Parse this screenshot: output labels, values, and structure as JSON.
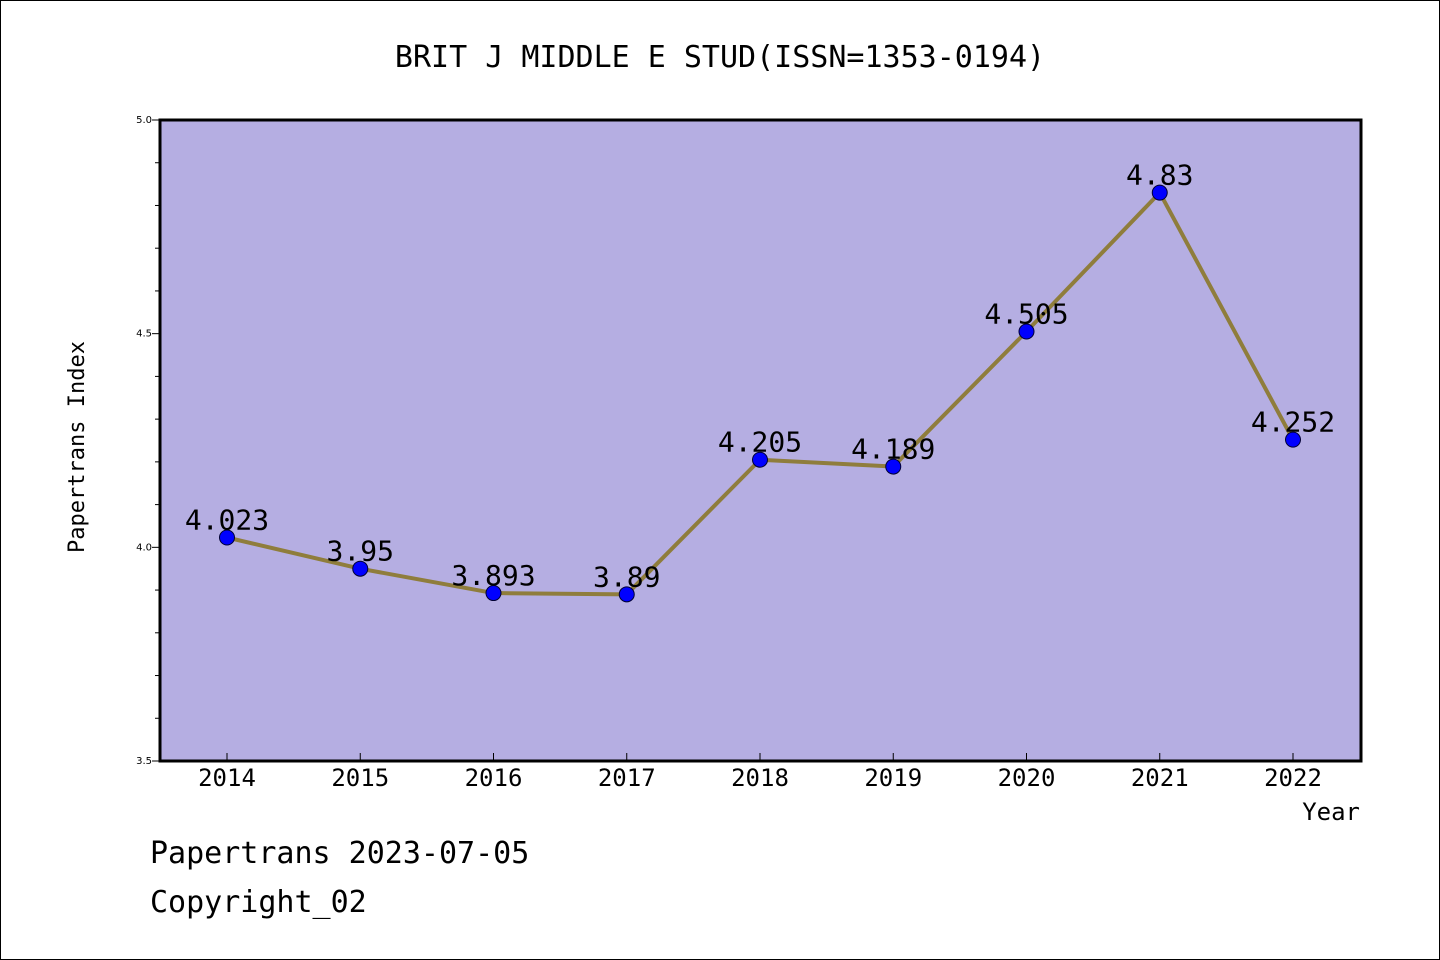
{
  "chart_data": {
    "type": "line",
    "title": "BRIT J MIDDLE E STUD(ISSN=1353-0194)",
    "xlabel": "Year",
    "ylabel": "Papertrans Index",
    "x": [
      "2014",
      "2015",
      "2016",
      "2017",
      "2018",
      "2019",
      "2020",
      "2021",
      "2022"
    ],
    "series": [
      {
        "values": [
          4.023,
          3.95,
          3.893,
          3.89,
          4.205,
          4.189,
          4.505,
          4.83,
          4.252
        ],
        "labels": [
          "4.023",
          "3.95",
          "3.893",
          "3.89",
          "4.205",
          "4.189",
          "4.505",
          "4.83",
          "4.252"
        ]
      }
    ],
    "ylim": [
      3.5,
      5.0
    ],
    "yticks": [
      "3.5",
      "4.0",
      "4.5",
      "5.0"
    ],
    "grid": false,
    "colors": {
      "plot_background": "#b5aee2",
      "line": "#8f7d3c",
      "marker": "#0000ff"
    }
  },
  "footer": {
    "line1": "Papertrans 2023-07-05",
    "line2": "Copyright_02"
  }
}
